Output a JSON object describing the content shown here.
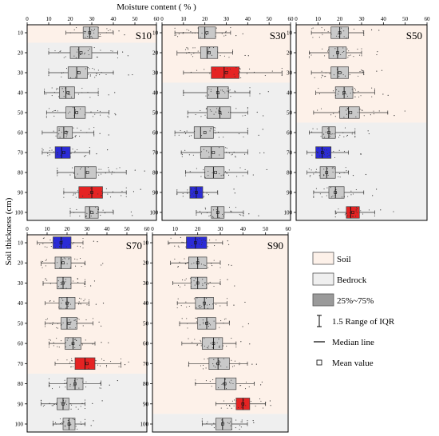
{
  "chart_data": {
    "type": "boxplot",
    "x_axis": {
      "label": "Moisture content ( % )",
      "ticks": [
        0,
        10,
        20,
        30,
        40,
        50,
        60
      ],
      "range": [
        0,
        60
      ]
    },
    "y_axis": {
      "label": "Soil thickness (cm)",
      "ticks": [
        10,
        20,
        30,
        40,
        50,
        60,
        70,
        80,
        90,
        100
      ]
    },
    "colors": {
      "soil": "#fdf1e9",
      "bedrock": "#efefef",
      "box": "#c9c9c9",
      "max": "#e52323",
      "min": "#2b2bd6"
    },
    "legend": [
      {
        "key": "soil",
        "label": "Soil"
      },
      {
        "key": "bedrock",
        "label": "Bedrock"
      },
      {
        "key": "box",
        "label": "25%~75%"
      },
      {
        "key": "whisker",
        "label": "1.5 Range of IQR"
      },
      {
        "key": "median",
        "label": "Median line"
      },
      {
        "key": "mean",
        "label": "Mean value"
      }
    ],
    "panels": [
      {
        "name": "S10",
        "soil_until": 10,
        "boxes": [
          {
            "depth": 10,
            "q1": 26,
            "median": 29,
            "q3": 33,
            "wlo": 18,
            "whi": 40,
            "mean": 29,
            "color": "box"
          },
          {
            "depth": 20,
            "q1": 20,
            "median": 24,
            "q3": 30,
            "wlo": 10,
            "whi": 42,
            "mean": 25,
            "color": "box"
          },
          {
            "depth": 30,
            "q1": 19,
            "median": 23,
            "q3": 28,
            "wlo": 10,
            "whi": 40,
            "mean": 24,
            "color": "box"
          },
          {
            "depth": 40,
            "q1": 15,
            "median": 18,
            "q3": 22,
            "wlo": 8,
            "whi": 33,
            "mean": 19,
            "color": "box"
          },
          {
            "depth": 50,
            "q1": 18,
            "median": 22,
            "q3": 27,
            "wlo": 9,
            "whi": 38,
            "mean": 23,
            "color": "box"
          },
          {
            "depth": 60,
            "q1": 14,
            "median": 17,
            "q3": 21,
            "wlo": 7,
            "whi": 31,
            "mean": 18,
            "color": "box"
          },
          {
            "depth": 70,
            "q1": 13,
            "median": 16,
            "q3": 20,
            "wlo": 7,
            "whi": 29,
            "mean": 17,
            "color": "min"
          },
          {
            "depth": 80,
            "q1": 22,
            "median": 27,
            "q3": 32,
            "wlo": 14,
            "whi": 46,
            "mean": 28,
            "color": "box"
          },
          {
            "depth": 90,
            "q1": 24,
            "median": 30,
            "q3": 35,
            "wlo": 17,
            "whi": 46,
            "mean": 30,
            "color": "max"
          },
          {
            "depth": 100,
            "q1": 27,
            "median": 29,
            "q3": 33,
            "wlo": 20,
            "whi": 40,
            "mean": 30,
            "color": "box"
          }
        ]
      },
      {
        "name": "S30",
        "soil_until": 30,
        "boxes": [
          {
            "depth": 10,
            "q1": 17,
            "median": 20,
            "q3": 25,
            "wlo": 6,
            "whi": 32,
            "mean": 21,
            "color": "box"
          },
          {
            "depth": 20,
            "q1": 18,
            "median": 21,
            "q3": 26,
            "wlo": 7,
            "whi": 33,
            "mean": 22,
            "color": "box"
          },
          {
            "depth": 30,
            "q1": 23,
            "median": 29,
            "q3": 36,
            "wlo": 10,
            "whi": 56,
            "mean": 30,
            "color": "max"
          },
          {
            "depth": 40,
            "q1": 21,
            "median": 26,
            "q3": 31,
            "wlo": 10,
            "whi": 41,
            "mean": 26,
            "color": "box"
          },
          {
            "depth": 50,
            "q1": 21,
            "median": 27,
            "q3": 32,
            "wlo": 12,
            "whi": 40,
            "mean": 27,
            "color": "box"
          },
          {
            "depth": 60,
            "q1": 15,
            "median": 18,
            "q3": 24,
            "wlo": 6,
            "whi": 40,
            "mean": 20,
            "color": "box"
          },
          {
            "depth": 70,
            "q1": 18,
            "median": 23,
            "q3": 29,
            "wlo": 9,
            "whi": 40,
            "mean": 24,
            "color": "box"
          },
          {
            "depth": 80,
            "q1": 20,
            "median": 24,
            "q3": 29,
            "wlo": 11,
            "whi": 40,
            "mean": 25,
            "color": "box"
          },
          {
            "depth": 90,
            "q1": 13,
            "median": 16,
            "q3": 19,
            "wlo": 7,
            "whi": 26,
            "mean": 16,
            "color": "min"
          },
          {
            "depth": 100,
            "q1": 23,
            "median": 26,
            "q3": 29,
            "wlo": 16,
            "whi": 38,
            "mean": 26,
            "color": "box"
          }
        ]
      },
      {
        "name": "S50",
        "soil_until": 50,
        "boxes": [
          {
            "depth": 10,
            "q1": 16,
            "median": 20,
            "q3": 24,
            "wlo": 7,
            "whi": 31,
            "mean": 20,
            "color": "box"
          },
          {
            "depth": 20,
            "q1": 15,
            "median": 19,
            "q3": 23,
            "wlo": 6,
            "whi": 30,
            "mean": 19,
            "color": "box"
          },
          {
            "depth": 30,
            "q1": 16,
            "median": 19,
            "q3": 24,
            "wlo": 7,
            "whi": 31,
            "mean": 20,
            "color": "box"
          },
          {
            "depth": 40,
            "q1": 18,
            "median": 22,
            "q3": 26,
            "wlo": 9,
            "whi": 36,
            "mean": 22,
            "color": "box"
          },
          {
            "depth": 50,
            "q1": 20,
            "median": 24,
            "q3": 29,
            "wlo": 8,
            "whi": 42,
            "mean": 25,
            "color": "box"
          },
          {
            "depth": 60,
            "q1": 12,
            "median": 15,
            "q3": 18,
            "wlo": 6,
            "whi": 27,
            "mean": 15,
            "color": "box"
          },
          {
            "depth": 70,
            "q1": 9,
            "median": 12,
            "q3": 16,
            "wlo": 5,
            "whi": 24,
            "mean": 12,
            "color": "min"
          },
          {
            "depth": 80,
            "q1": 11,
            "median": 14,
            "q3": 18,
            "wlo": 5,
            "whi": 24,
            "mean": 14,
            "color": "box"
          },
          {
            "depth": 90,
            "q1": 15,
            "median": 18,
            "q3": 22,
            "wlo": 8,
            "whi": 31,
            "mean": 18,
            "color": "box"
          },
          {
            "depth": 100,
            "q1": 23,
            "median": 25,
            "q3": 29,
            "wlo": 18,
            "whi": 36,
            "mean": 26,
            "color": "max"
          }
        ]
      },
      {
        "name": "S70",
        "soil_until": 70,
        "boxes": [
          {
            "depth": 10,
            "q1": 13,
            "median": 17,
            "q3": 22,
            "wlo": 5,
            "whi": 28,
            "mean": 17,
            "color": "min"
          },
          {
            "depth": 20,
            "q1": 14,
            "median": 17,
            "q3": 22,
            "wlo": 7,
            "whi": 29,
            "mean": 18,
            "color": "box"
          },
          {
            "depth": 30,
            "q1": 15,
            "median": 18,
            "q3": 22,
            "wlo": 8,
            "whi": 29,
            "mean": 18,
            "color": "box"
          },
          {
            "depth": 40,
            "q1": 16,
            "median": 20,
            "q3": 24,
            "wlo": 9,
            "whi": 31,
            "mean": 20,
            "color": "box"
          },
          {
            "depth": 50,
            "q1": 17,
            "median": 20,
            "q3": 25,
            "wlo": 9,
            "whi": 33,
            "mean": 21,
            "color": "box"
          },
          {
            "depth": 60,
            "q1": 19,
            "median": 23,
            "q3": 27,
            "wlo": 11,
            "whi": 34,
            "mean": 23,
            "color": "box"
          },
          {
            "depth": 70,
            "q1": 24,
            "median": 29,
            "q3": 34,
            "wlo": 14,
            "whi": 47,
            "mean": 30,
            "color": "max"
          },
          {
            "depth": 80,
            "q1": 20,
            "median": 24,
            "q3": 28,
            "wlo": 11,
            "whi": 37,
            "mean": 24,
            "color": "box"
          },
          {
            "depth": 90,
            "q1": 15,
            "median": 18,
            "q3": 21,
            "wlo": 7,
            "whi": 29,
            "mean": 18,
            "color": "box"
          },
          {
            "depth": 100,
            "q1": 18,
            "median": 21,
            "q3": 24,
            "wlo": 13,
            "whi": 29,
            "mean": 21,
            "color": "box"
          }
        ]
      },
      {
        "name": "S90",
        "soil_until": 90,
        "boxes": [
          {
            "depth": 10,
            "q1": 15,
            "median": 19,
            "q3": 24,
            "wlo": 7,
            "whi": 31,
            "mean": 19,
            "color": "min"
          },
          {
            "depth": 20,
            "q1": 16,
            "median": 20,
            "q3": 24,
            "wlo": 8,
            "whi": 30,
            "mean": 20,
            "color": "box"
          },
          {
            "depth": 30,
            "q1": 17,
            "median": 20,
            "q3": 24,
            "wlo": 9,
            "whi": 30,
            "mean": 20,
            "color": "box"
          },
          {
            "depth": 40,
            "q1": 19,
            "median": 23,
            "q3": 27,
            "wlo": 11,
            "whi": 33,
            "mean": 23,
            "color": "box"
          },
          {
            "depth": 50,
            "q1": 20,
            "median": 24,
            "q3": 28,
            "wlo": 12,
            "whi": 34,
            "mean": 24,
            "color": "box"
          },
          {
            "depth": 60,
            "q1": 22,
            "median": 27,
            "q3": 31,
            "wlo": 13,
            "whi": 37,
            "mean": 27,
            "color": "box"
          },
          {
            "depth": 70,
            "q1": 25,
            "median": 29,
            "q3": 34,
            "wlo": 16,
            "whi": 42,
            "mean": 29,
            "color": "box"
          },
          {
            "depth": 80,
            "q1": 28,
            "median": 32,
            "q3": 37,
            "wlo": 19,
            "whi": 45,
            "mean": 32,
            "color": "box"
          },
          {
            "depth": 90,
            "q1": 37,
            "median": 40,
            "q3": 43,
            "wlo": 28,
            "whi": 50,
            "mean": 40,
            "color": "max"
          },
          {
            "depth": 100,
            "q1": 28,
            "median": 31,
            "q3": 35,
            "wlo": 22,
            "whi": 42,
            "mean": 31,
            "color": "box"
          }
        ]
      }
    ]
  }
}
